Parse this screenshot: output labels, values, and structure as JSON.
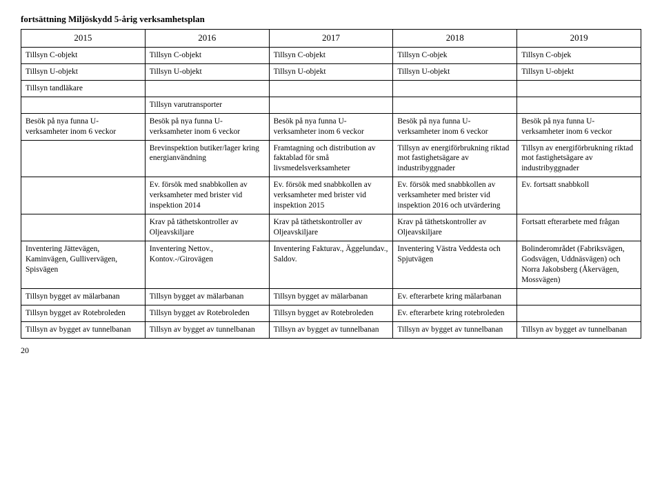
{
  "title": "fortsättning Miljöskydd 5-årig verksamhetsplan",
  "years": [
    "2015",
    "2016",
    "2017",
    "2018",
    "2019"
  ],
  "rows": [
    [
      "Tillsyn C-objekt",
      "Tillsyn C-objekt",
      "Tillsyn C-objekt",
      "Tillsyn C-objek",
      "Tillsyn C-objek"
    ],
    [
      "Tillsyn U-objekt",
      "Tillsyn U-objekt",
      "Tillsyn U-objekt",
      "Tillsyn U-objekt",
      "Tillsyn U-objekt"
    ],
    [
      "Tillsyn tandläkare",
      "",
      "",
      "",
      ""
    ],
    [
      "",
      "Tillsyn varutransporter",
      "",
      "",
      ""
    ],
    [
      "Besök på nya funna U-verksamheter inom 6 veckor",
      "Besök på nya funna U-verksamheter inom 6 veckor",
      "Besök på nya funna U-verksamheter inom 6 veckor",
      "Besök på nya funna U-verksamheter inom 6 veckor",
      "Besök på nya funna U-verksamheter inom 6 veckor"
    ],
    [
      "",
      "Brevinspektion butiker/lager kring energianvändning",
      "Framtagning och distribution av faktablad för små livsmedelsverksamheter",
      "Tillsyn av energiförbrukning riktad mot fastighetsägare av industribyggnader",
      "Tillsyn av energiförbrukning riktad mot fastighetsägare av industribyggnader"
    ],
    [
      "",
      "Ev. försök med snabbkollen av verksamheter med brister vid inspektion 2014",
      "Ev. försök med snabbkollen av verksamheter med brister vid inspektion 2015",
      "Ev. försök med snabbkollen av verksamheter med brister vid inspektion 2016 och utvärdering",
      "Ev. fortsatt snabbkoll"
    ],
    [
      "",
      "Krav på täthetskontroller av Oljeavskiljare",
      "Krav på täthetskontroller av Oljeavskiljare",
      "Krav på täthetskontroller av Oljeavskiljare",
      "Fortsatt efterarbete med frågan"
    ],
    [
      "Inventering Jättevägen, Kaminvägen, Gullivervägen, Spisvägen",
      "Inventering Nettov., Kontov.-/Girovägen",
      "Inventering Fakturav., Äggelundav., Saldov.",
      "Inventering Västra Veddesta och Spjutvägen",
      "Bolinderområdet (Fabriksvägen, Godsvägen, Uddnäsvägen) och Norra Jakobsberg (Åkervägen, Mossvägen)"
    ],
    [
      "Tillsyn bygget av mälarbanan",
      "Tillsyn bygget av mälarbanan",
      "Tillsyn bygget av mälarbanan",
      "Ev. efterarbete kring mälarbanan",
      ""
    ],
    [
      "Tillsyn bygget av Rotebroleden",
      "Tillsyn bygget av Rotebroleden",
      "Tillsyn bygget av Rotebroleden",
      "Ev. efterarbete kring rotebroleden",
      ""
    ],
    [
      "Tillsyn av bygget av tunnelbanan",
      "Tillsyn av bygget av tunnelbanan",
      "Tillsyn av bygget av tunnelbanan",
      "Tillsyn av bygget av tunnelbanan",
      "Tillsyn av bygget av tunnelbanan"
    ]
  ],
  "pageNumber": "20"
}
